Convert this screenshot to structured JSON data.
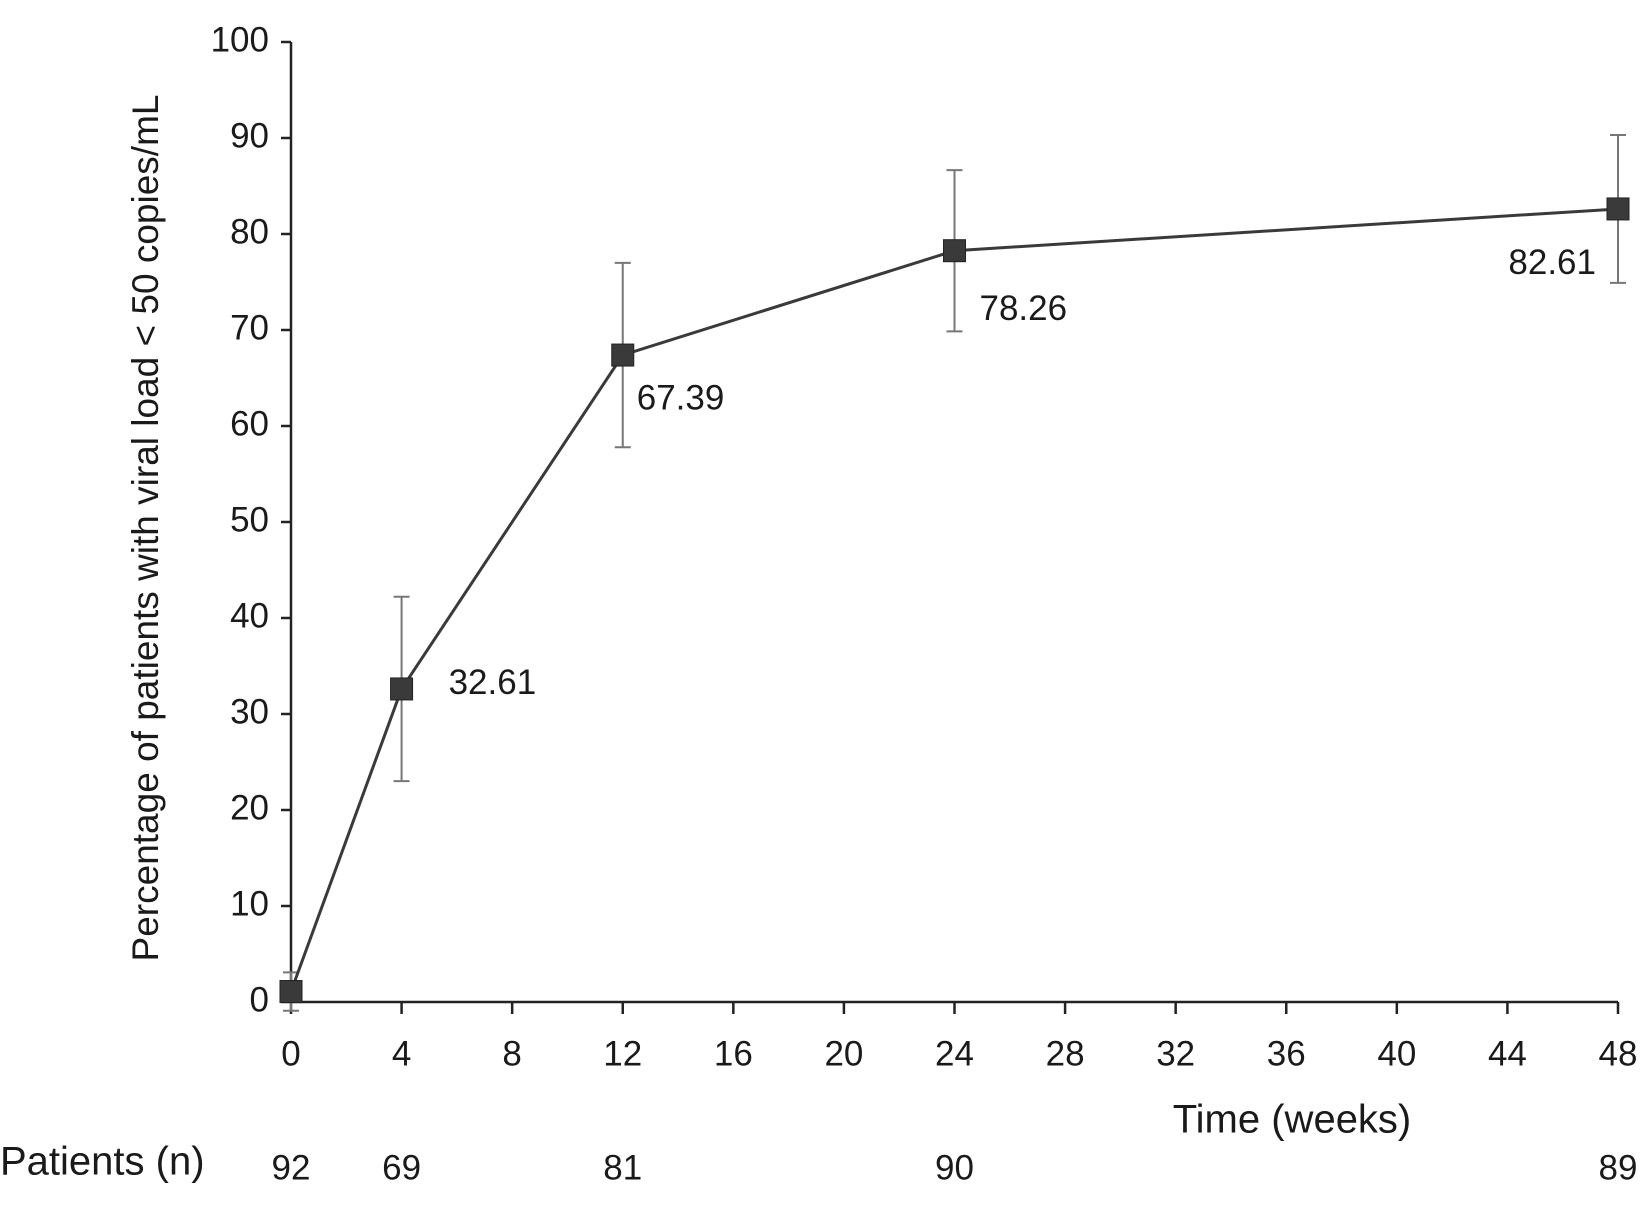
{
  "chart_data": {
    "type": "line",
    "y_label": "Percentage of patients with viral load < 50 copies/mL",
    "x_label": "Time (weeks)",
    "x": [
      0,
      4,
      12,
      24,
      48
    ],
    "series": [
      {
        "color": "#3a3a3a",
        "values": [
          1.09,
          32.61,
          67.39,
          78.26,
          82.61
        ],
        "errors": [
          2,
          9.6,
          9.6,
          8.4,
          7.7
        ],
        "value_labels": [
          null,
          "32.61",
          "67.39",
          "78.26",
          "82.61"
        ]
      }
    ],
    "xlim": [
      0,
      48
    ],
    "xticks": [
      0,
      4,
      8,
      12,
      16,
      20,
      24,
      28,
      32,
      36,
      40,
      44,
      48
    ],
    "ylim": [
      0,
      100
    ],
    "yticks": [
      0,
      10,
      20,
      30,
      40,
      50,
      60,
      70,
      80,
      90,
      100
    ],
    "grid": false,
    "patients_label": "Patients (n)",
    "patients": [
      92,
      69,
      81,
      90,
      89
    ]
  }
}
